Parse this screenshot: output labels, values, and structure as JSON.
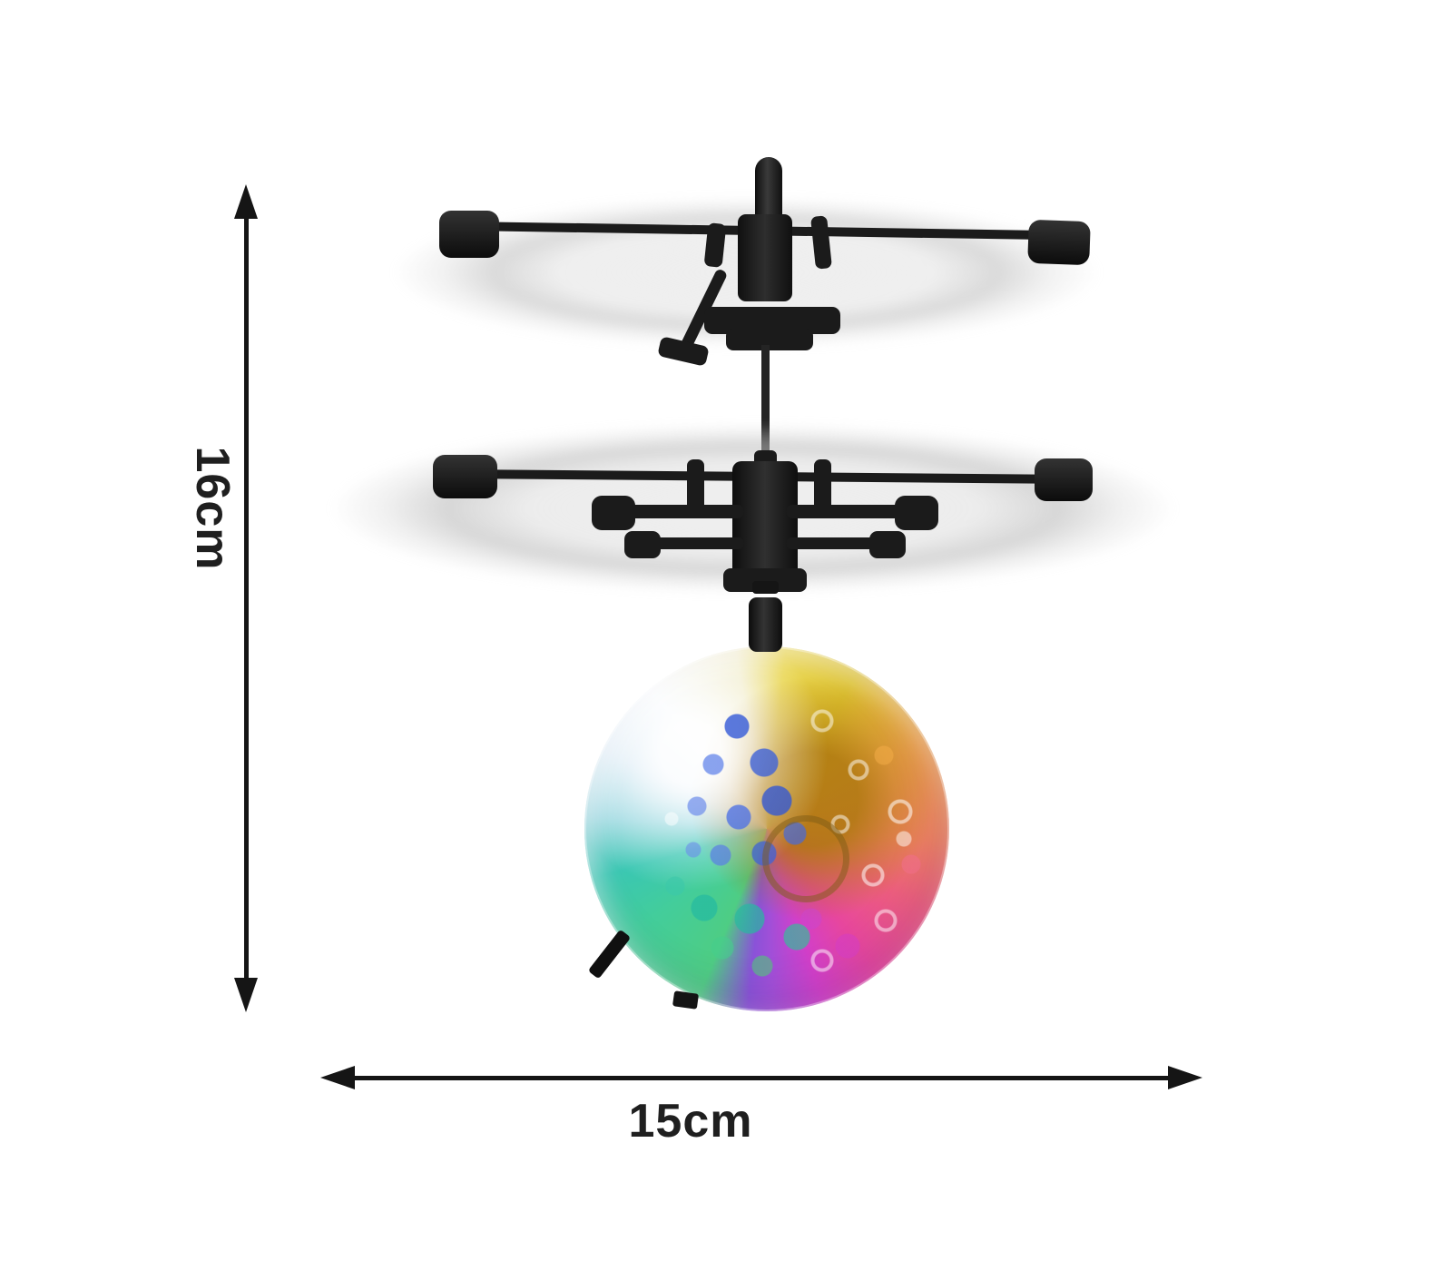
{
  "dimensions": {
    "height": {
      "label": "16cm"
    },
    "width": {
      "label": "15cm"
    }
  },
  "icons": {
    "arrow_up": "▲",
    "arrow_down": "▼",
    "arrow_left": "◀",
    "arrow_right": "▶"
  },
  "colors": {
    "line": "#151515",
    "text": "#1f1f1f",
    "rotor": "#1b1b1b",
    "shaft": "#242424",
    "ball-yellow": "#e9d54b",
    "ball-gold": "#ad780e",
    "ball-orange": "#eda24b",
    "ball-salmon": "#ef8160",
    "ball-pink": "#ee5f7d",
    "ball-magenta": "#d23fc9",
    "ball-purple": "#a14fd8",
    "ball-green": "#4ecd84",
    "ball-teal": "#3ac7b2",
    "ball-paleblue": "#cfe4f2",
    "ball-white": "#f4f8fc",
    "ball-blue": "#4a6fdb"
  }
}
